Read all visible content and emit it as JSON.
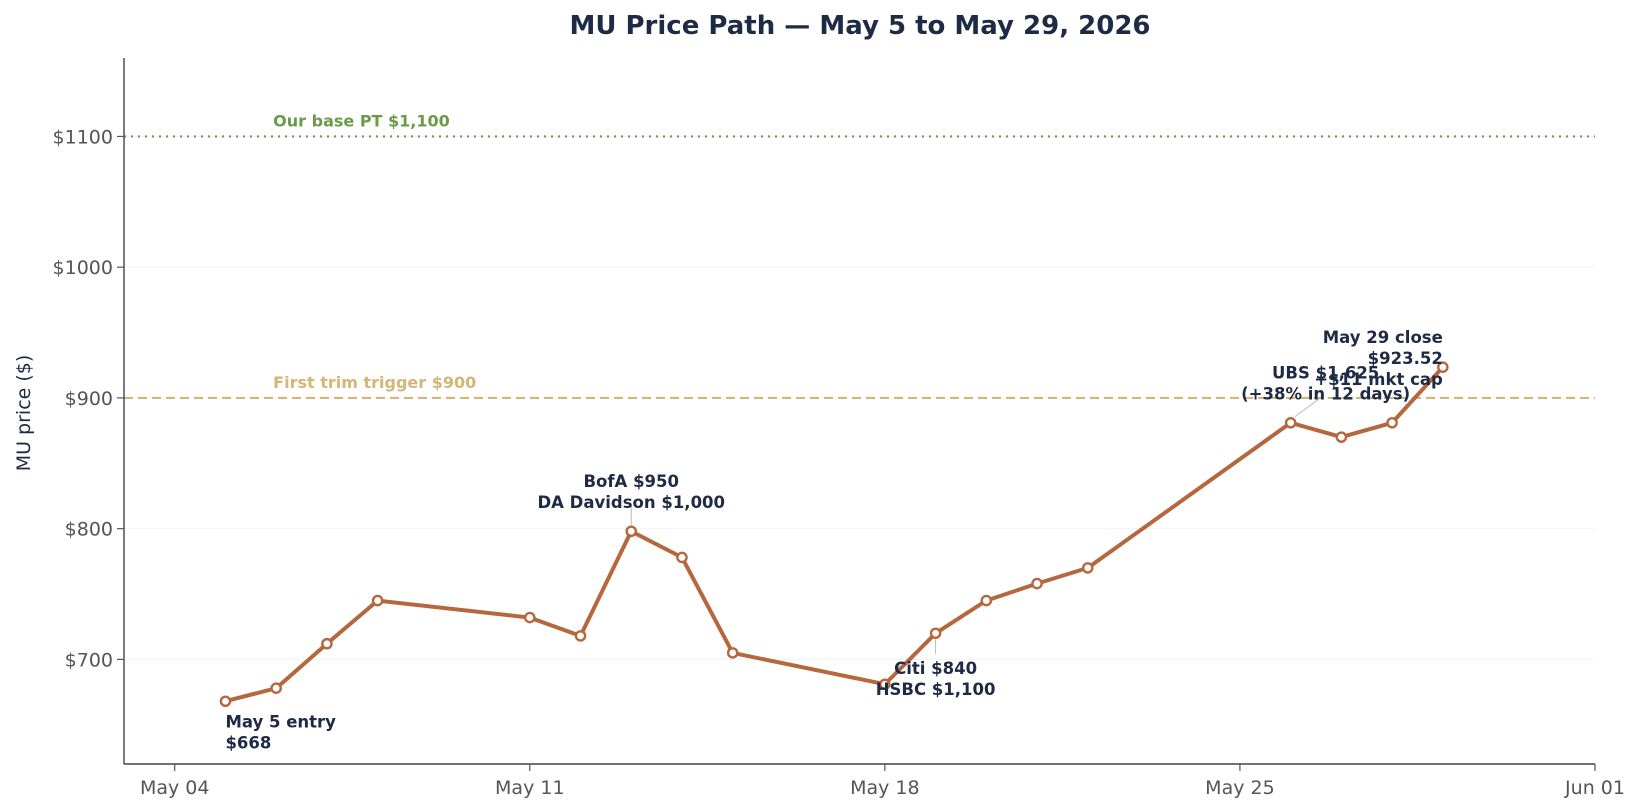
{
  "chart_data": {
    "type": "line",
    "title": "MU Price Path — May 5 to May 29, 2026",
    "xlabel": "",
    "ylabel": "MU price ($)",
    "x_range": [
      "2026-05-03",
      "2026-06-01"
    ],
    "ylim": [
      620,
      1160
    ],
    "x_ticks": [
      {
        "date": "2026-05-04",
        "label": "May 04"
      },
      {
        "date": "2026-05-11",
        "label": "May 11"
      },
      {
        "date": "2026-05-18",
        "label": "May 18"
      },
      {
        "date": "2026-05-25",
        "label": "May 25"
      },
      {
        "date": "2026-06-01",
        "label": "Jun 01"
      }
    ],
    "y_ticks": [
      {
        "value": 700,
        "label": "$700"
      },
      {
        "value": 800,
        "label": "$800"
      },
      {
        "value": 900,
        "label": "$900"
      },
      {
        "value": 1000,
        "label": "$1000"
      },
      {
        "value": 1100,
        "label": "$1100"
      }
    ],
    "grid": "horizontal",
    "series": [
      {
        "color": "#b5683e",
        "points": [
          {
            "date": "2026-05-05",
            "value": 668
          },
          {
            "date": "2026-05-06",
            "value": 678
          },
          {
            "date": "2026-05-07",
            "value": 712
          },
          {
            "date": "2026-05-08",
            "value": 745
          },
          {
            "date": "2026-05-11",
            "value": 732
          },
          {
            "date": "2026-05-12",
            "value": 718
          },
          {
            "date": "2026-05-13",
            "value": 798
          },
          {
            "date": "2026-05-14",
            "value": 778
          },
          {
            "date": "2026-05-15",
            "value": 705
          },
          {
            "date": "2026-05-18",
            "value": 681
          },
          {
            "date": "2026-05-19",
            "value": 720
          },
          {
            "date": "2026-05-20",
            "value": 745
          },
          {
            "date": "2026-05-21",
            "value": 758
          },
          {
            "date": "2026-05-22",
            "value": 770
          },
          {
            "date": "2026-05-26",
            "value": 881
          },
          {
            "date": "2026-05-27",
            "value": 870
          },
          {
            "date": "2026-05-28",
            "value": 881
          },
          {
            "date": "2026-05-29",
            "value": 923.52
          }
        ]
      }
    ],
    "reference_lines": [
      {
        "value": 1100,
        "label": "Our base PT $1,100",
        "style": "dotted",
        "color": "#6a9a4a",
        "label_date": "2026-05-06"
      },
      {
        "value": 900,
        "label": "First trim trigger $900",
        "style": "dashed",
        "color": "#d4b676",
        "label_date": "2026-05-06"
      }
    ],
    "annotations": [
      {
        "lines": [
          "May 5 entry",
          "$668"
        ],
        "date": "2026-05-05",
        "value": 648,
        "align": "start"
      },
      {
        "lines": [
          "BofA $950",
          "DA Davidson $1,000"
        ],
        "date": "2026-05-13",
        "value": 832,
        "align": "middle",
        "leader_to": 798
      },
      {
        "lines": [
          "Citi $840",
          "HSBC $1,100"
        ],
        "date": "2026-05-19",
        "value": 689,
        "align": "middle",
        "leader_to": 720
      },
      {
        "lines": [
          "UBS $1,625",
          "(+38% in 12 days)"
        ],
        "date": "2026-05-26",
        "value": 915,
        "align": "middle",
        "leader_to": 881
      },
      {
        "lines": [
          "May 29 close",
          "$923.52",
          "+$11 mkt cap"
        ],
        "date": "2026-05-29",
        "value": 942,
        "align": "end"
      }
    ]
  }
}
